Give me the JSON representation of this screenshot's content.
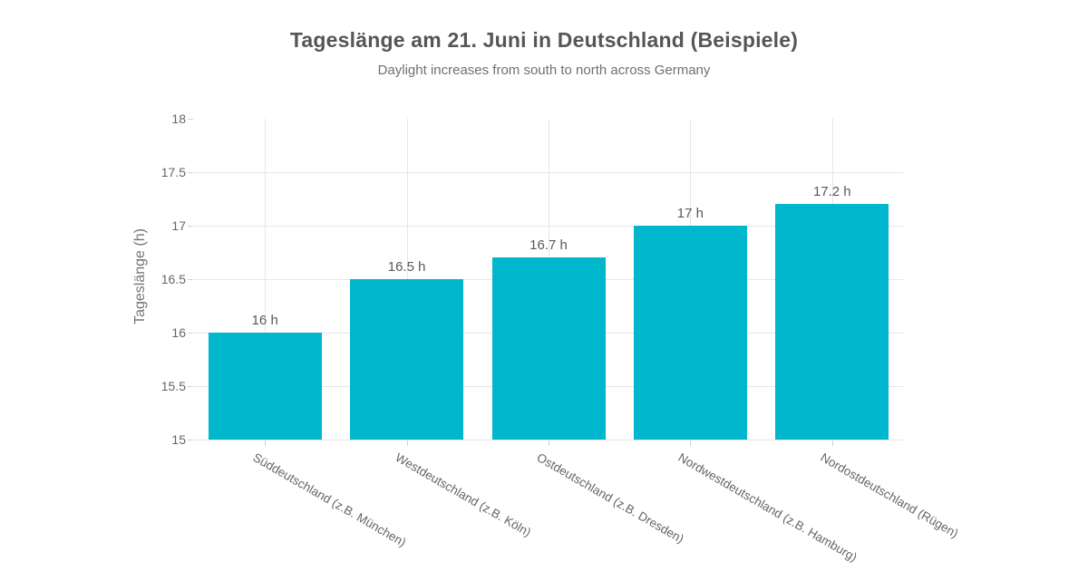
{
  "chart_data": {
    "type": "bar",
    "title": "Tageslänge am 21. Juni in Deutschland (Beispiele)",
    "subtitle": "Daylight increases from south to north across Germany",
    "ylabel": "Tageslänge (h)",
    "xlabel": "",
    "categories": [
      "Süddeutschland (z.B. München)",
      "Westdeutschland (z.B. Köln)",
      "Ostdeutschland (z.B. Dresden)",
      "Nordwestdeutschland (z.B. Hamburg)",
      "Nordostdeutschland (Rügen)"
    ],
    "values": [
      16,
      16.5,
      16.7,
      17,
      17.2
    ],
    "bar_labels": [
      "16 h",
      "16.5 h",
      "16.7 h",
      "17 h",
      "17.2 h"
    ],
    "ylim": [
      15,
      18
    ],
    "ytick_step": 0.5,
    "grid": true,
    "legend": false,
    "bar_color": "#00b7cd",
    "grid_color": "#e6e6e6",
    "text_color": "#666666",
    "label_rotation_deg": 30
  }
}
